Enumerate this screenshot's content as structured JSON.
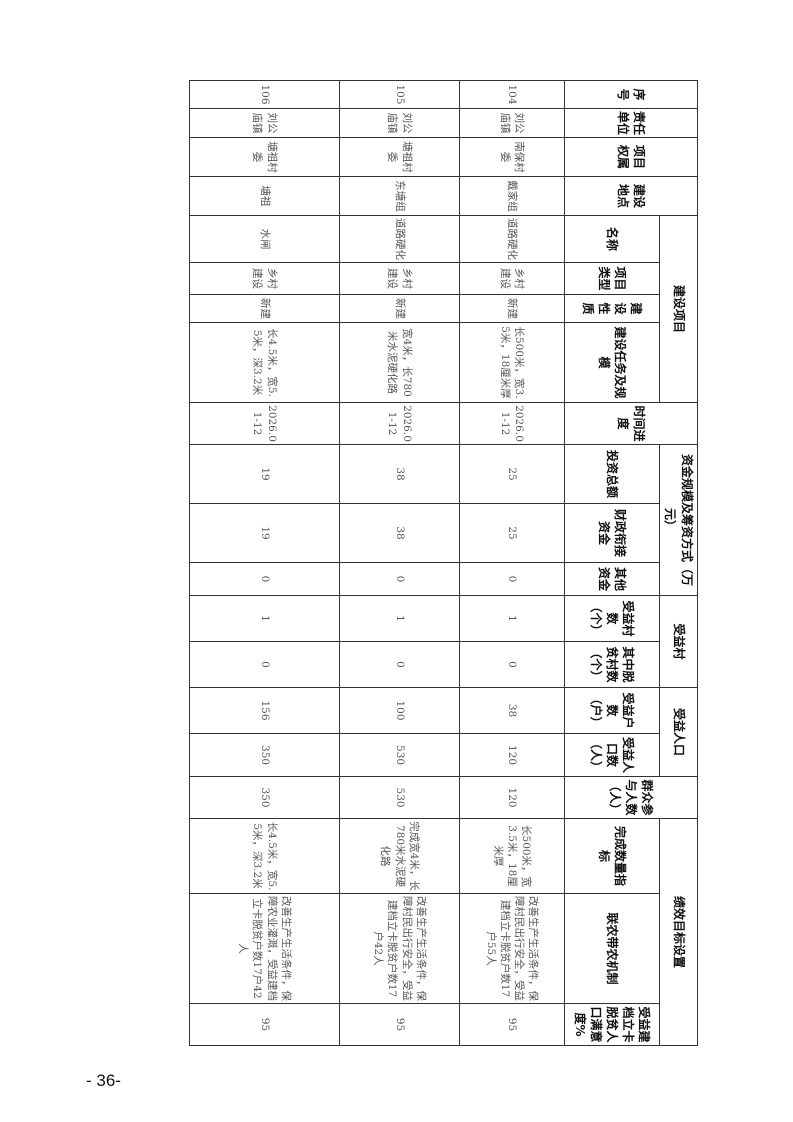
{
  "header": {
    "groups": {
      "seq": "序号",
      "unit": "责任单位",
      "ownership": "项目权属",
      "location": "建设地点",
      "project": "建设项目",
      "schedule": "时间进度",
      "funding": "资金规模及筹资方式（万元）",
      "village": "受益村",
      "population": "受益人口",
      "participants": "群众参与人数（人）",
      "performance": "绩效目标设置"
    },
    "sub": {
      "name": "名称",
      "type": "项目类型",
      "nature": "建设性质",
      "scale": "建设任务及规模",
      "total": "投资总额",
      "fiscal": "财政衔接资金",
      "other": "其他资金",
      "villages": "受益村数（个）",
      "poor_villages": "其中脱贫村数（个）",
      "households": "受益户数（户）",
      "people": "受益人口数（人）",
      "quantity": "完成数量指标",
      "mechanism": "联农带农机制",
      "satisfaction": "受益建档立卡脱贫人口满意度%"
    }
  },
  "rows": [
    {
      "seq": "104",
      "unit": "刘公庙镇",
      "ownership": "南保村委",
      "location": "戴家组",
      "name": "道路硬化",
      "type": "乡村建设",
      "nature": "新建",
      "scale": "长500米，宽3.5米，18厘米厚",
      "schedule": "2026.01-12",
      "total": "25",
      "fiscal": "25",
      "other": "0",
      "villages": "1",
      "poor_villages": "0",
      "households": "38",
      "people": "120",
      "participants": "120",
      "quantity": "长500米，宽3.5米，18厘米厚",
      "mechanism": "改善生产生活条件，保障村民出行安全，受益建档立卡脱贫户数17户55人",
      "satisfaction": "95"
    },
    {
      "seq": "105",
      "unit": "刘公庙镇",
      "ownership": "塘祖村委",
      "location": "东塘组",
      "name": "道路硬化",
      "type": "乡村建设",
      "nature": "新建",
      "scale": "宽4米，长780米水泥硬化路",
      "schedule": "2026.01-12",
      "total": "38",
      "fiscal": "38",
      "other": "0",
      "villages": "1",
      "poor_villages": "0",
      "households": "100",
      "people": "530",
      "participants": "530",
      "quantity": "完成宽4米，长780米水泥硬化路",
      "mechanism": "改善生产生活条件，保障村民出行安全，受益建档立卡脱贫户数17户42人",
      "satisfaction": "95"
    },
    {
      "seq": "106",
      "unit": "刘公庙镇",
      "ownership": "塘祖村委",
      "location": "塘祖",
      "name": "水闸",
      "type": "乡村建设",
      "nature": "新建",
      "scale": "长4.5米，宽5.5米，深3.2米",
      "schedule": "2026.01-12",
      "total": "19",
      "fiscal": "19",
      "other": "0",
      "villages": "1",
      "poor_villages": "0",
      "households": "156",
      "people": "350",
      "participants": "350",
      "quantity": "长4.5米，宽5.5米，深3.2米",
      "mechanism": "改善生产生活条件，保障农业灌溉，受益建档立卡脱贫户数17户42人",
      "satisfaction": "95"
    }
  ],
  "footer": {
    "page_number": "- 36-"
  }
}
